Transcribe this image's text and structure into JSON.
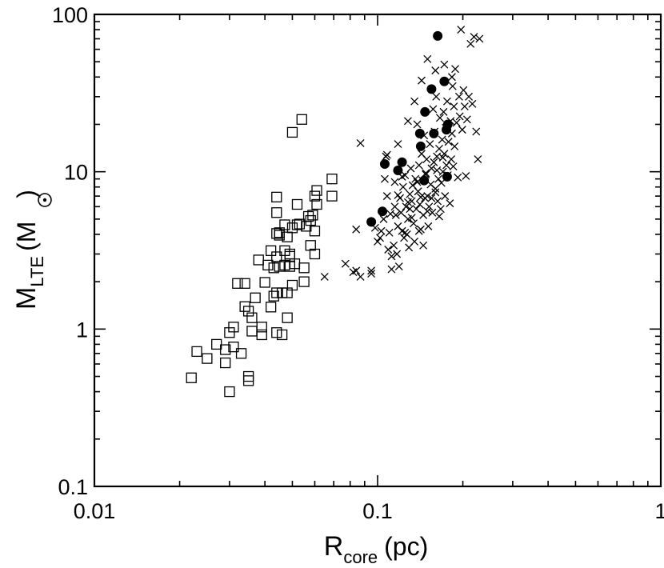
{
  "chart_data": {
    "type": "scatter",
    "xscale": "log",
    "yscale": "log",
    "xlim": [
      0.01,
      1
    ],
    "ylim": [
      0.1,
      100
    ],
    "xticks": [
      {
        "value": 0.01,
        "label": "0.01"
      },
      {
        "value": 0.1,
        "label": "0.1"
      },
      {
        "value": 1,
        "label": "1"
      }
    ],
    "yticks": [
      {
        "value": 0.1,
        "label": "0.1"
      },
      {
        "value": 1,
        "label": "1"
      },
      {
        "value": 10,
        "label": "10"
      },
      {
        "value": 100,
        "label": "100"
      }
    ],
    "xlabel": {
      "main": "R",
      "sub": "core",
      "unit": "(pc)"
    },
    "ylabel": {
      "main": "M",
      "sub": "LTE",
      "unit_open": "(M",
      "unit_close": ")"
    },
    "grid": false,
    "legend": "none",
    "series": [
      {
        "marker": "open-square",
        "points": [
          [
            0.022,
            0.49
          ],
          [
            0.023,
            0.72
          ],
          [
            0.025,
            0.65
          ],
          [
            0.027,
            0.8
          ],
          [
            0.029,
            0.61
          ],
          [
            0.029,
            0.74
          ],
          [
            0.03,
            0.4
          ],
          [
            0.03,
            0.95
          ],
          [
            0.031,
            0.77
          ],
          [
            0.031,
            1.03
          ],
          [
            0.032,
            1.95
          ],
          [
            0.033,
            0.7
          ],
          [
            0.034,
            1.39
          ],
          [
            0.034,
            1.95
          ],
          [
            0.035,
            1.3
          ],
          [
            0.035,
            0.47
          ],
          [
            0.035,
            0.5
          ],
          [
            0.036,
            0.97
          ],
          [
            0.036,
            1.18
          ],
          [
            0.037,
            1.58
          ],
          [
            0.038,
            2.75
          ],
          [
            0.039,
            0.92
          ],
          [
            0.039,
            1.03
          ],
          [
            0.04,
            1.98
          ],
          [
            0.041,
            2.55
          ],
          [
            0.042,
            1.38
          ],
          [
            0.042,
            3.15
          ],
          [
            0.043,
            1.62
          ],
          [
            0.043,
            2.45
          ],
          [
            0.044,
            0.95
          ],
          [
            0.044,
            1.7
          ],
          [
            0.044,
            2.88
          ],
          [
            0.044,
            4.05
          ],
          [
            0.044,
            5.5
          ],
          [
            0.044,
            6.9
          ],
          [
            0.045,
            3.95
          ],
          [
            0.045,
            4.1
          ],
          [
            0.045,
            2.5
          ],
          [
            0.046,
            1.7
          ],
          [
            0.046,
            0.92
          ],
          [
            0.047,
            4.6
          ],
          [
            0.047,
            3.15
          ],
          [
            0.047,
            2.55
          ],
          [
            0.048,
            1.7
          ],
          [
            0.048,
            3.85
          ],
          [
            0.048,
            1.18
          ],
          [
            0.049,
            2.5
          ],
          [
            0.049,
            3.0
          ],
          [
            0.049,
            2.9
          ],
          [
            0.05,
            1.9
          ],
          [
            0.05,
            4.4
          ],
          [
            0.05,
            17.8
          ],
          [
            0.051,
            2.6
          ],
          [
            0.052,
            4.6
          ],
          [
            0.052,
            6.2
          ],
          [
            0.053,
            4.65
          ],
          [
            0.054,
            21.5
          ],
          [
            0.055,
            2.45
          ],
          [
            0.055,
            2.0
          ],
          [
            0.056,
            4.5
          ],
          [
            0.057,
            5.2
          ],
          [
            0.058,
            3.4
          ],
          [
            0.058,
            4.9
          ],
          [
            0.059,
            5.3
          ],
          [
            0.06,
            7.0
          ],
          [
            0.06,
            3.0
          ],
          [
            0.06,
            4.2
          ],
          [
            0.061,
            6.2
          ],
          [
            0.061,
            7.6
          ],
          [
            0.069,
            7.0
          ],
          [
            0.069,
            9.0
          ]
        ]
      },
      {
        "marker": "x",
        "points": [
          [
            0.065,
            2.15
          ],
          [
            0.077,
            2.6
          ],
          [
            0.082,
            2.3
          ],
          [
            0.084,
            2.35
          ],
          [
            0.087,
            2.15
          ],
          [
            0.084,
            4.3
          ],
          [
            0.095,
            2.35
          ],
          [
            0.095,
            2.25
          ],
          [
            0.098,
            4.4
          ],
          [
            0.1,
            3.6
          ],
          [
            0.102,
            3.8
          ],
          [
            0.103,
            4.2
          ],
          [
            0.105,
            5.0
          ],
          [
            0.106,
            9.0
          ],
          [
            0.107,
            12.5
          ],
          [
            0.108,
            7.0
          ],
          [
            0.109,
            3.2
          ],
          [
            0.11,
            4.1
          ],
          [
            0.111,
            5.4
          ],
          [
            0.112,
            2.9
          ],
          [
            0.112,
            2.4
          ],
          [
            0.114,
            3.4
          ],
          [
            0.115,
            6.0
          ],
          [
            0.115,
            8.6
          ],
          [
            0.116,
            5.3
          ],
          [
            0.117,
            3.0
          ],
          [
            0.118,
            4.5
          ],
          [
            0.119,
            2.5
          ],
          [
            0.12,
            6.8
          ],
          [
            0.121,
            5.5
          ],
          [
            0.122,
            4.2
          ],
          [
            0.123,
            8.0
          ],
          [
            0.124,
            3.8
          ],
          [
            0.125,
            9.5
          ],
          [
            0.126,
            6.0
          ],
          [
            0.127,
            4.0
          ],
          [
            0.128,
            5.0
          ],
          [
            0.129,
            3.3
          ],
          [
            0.13,
            7.2
          ],
          [
            0.131,
            10.5
          ],
          [
            0.132,
            6.5
          ],
          [
            0.133,
            8.2
          ],
          [
            0.134,
            4.7
          ],
          [
            0.135,
            3.6
          ],
          [
            0.136,
            9.0
          ],
          [
            0.137,
            5.8
          ],
          [
            0.138,
            20.0
          ],
          [
            0.139,
            7.5
          ],
          [
            0.14,
            11.0
          ],
          [
            0.141,
            6.2
          ],
          [
            0.142,
            4.3
          ],
          [
            0.143,
            13.0
          ],
          [
            0.144,
            8.8
          ],
          [
            0.145,
            5.3
          ],
          [
            0.146,
            17.0
          ],
          [
            0.147,
            6.8
          ],
          [
            0.148,
            9.8
          ],
          [
            0.149,
            12.0
          ],
          [
            0.15,
            7.0
          ],
          [
            0.151,
            4.5
          ],
          [
            0.152,
            6.0
          ],
          [
            0.153,
            15.0
          ],
          [
            0.154,
            8.3
          ],
          [
            0.155,
            10.5
          ],
          [
            0.156,
            5.5
          ],
          [
            0.157,
            25.0
          ],
          [
            0.158,
            11.5
          ],
          [
            0.159,
            18.0
          ],
          [
            0.16,
            7.8
          ],
          [
            0.161,
            30.0
          ],
          [
            0.162,
            12.5
          ],
          [
            0.163,
            6.5
          ],
          [
            0.164,
            9.0
          ],
          [
            0.165,
            14.0
          ],
          [
            0.166,
            22.0
          ],
          [
            0.167,
            5.8
          ],
          [
            0.168,
            8.5
          ],
          [
            0.169,
            16.0
          ],
          [
            0.17,
            10.0
          ],
          [
            0.171,
            24.0
          ],
          [
            0.172,
            13.0
          ],
          [
            0.173,
            7.0
          ],
          [
            0.174,
            19.0
          ],
          [
            0.175,
            11.0
          ],
          [
            0.176,
            28.0
          ],
          [
            0.177,
            9.5
          ],
          [
            0.178,
            15.5
          ],
          [
            0.18,
            6.3
          ],
          [
            0.181,
            21.0
          ],
          [
            0.182,
            12.0
          ],
          [
            0.183,
            17.5
          ],
          [
            0.184,
            35.0
          ],
          [
            0.185,
            10.8
          ],
          [
            0.186,
            26.0
          ],
          [
            0.187,
            14.5
          ],
          [
            0.188,
            45.0
          ],
          [
            0.19,
            20.5
          ],
          [
            0.192,
            9.2
          ],
          [
            0.194,
            30.0
          ],
          [
            0.195,
            22.5
          ],
          [
            0.197,
            80.0
          ],
          [
            0.199,
            18.5
          ],
          [
            0.201,
            33.0
          ],
          [
            0.203,
            26.0
          ],
          [
            0.205,
            9.4
          ],
          [
            0.207,
            21.5
          ],
          [
            0.21,
            30.0
          ],
          [
            0.213,
            65.0
          ],
          [
            0.216,
            27.0
          ],
          [
            0.219,
            72.0
          ],
          [
            0.223,
            18.0
          ],
          [
            0.226,
            12.0
          ],
          [
            0.229,
            70.0
          ],
          [
            0.15,
            52.0
          ],
          [
            0.16,
            44.0
          ],
          [
            0.172,
            48.0
          ],
          [
            0.183,
            40.0
          ],
          [
            0.143,
            38.0
          ],
          [
            0.135,
            28.0
          ],
          [
            0.128,
            21.0
          ],
          [
            0.118,
            15.0
          ],
          [
            0.108,
            12.8
          ],
          [
            0.087,
            15.2
          ],
          [
            0.125,
            4.1
          ],
          [
            0.13,
            5.8
          ],
          [
            0.14,
            4.2
          ],
          [
            0.145,
            3.4
          ],
          [
            0.15,
            5.6
          ],
          [
            0.155,
            6.8
          ],
          [
            0.16,
            7.4
          ],
          [
            0.165,
            5.2
          ],
          [
            0.128,
            6.4
          ],
          [
            0.118,
            7.1
          ],
          [
            0.122,
            9.3
          ],
          [
            0.138,
            8.6
          ],
          [
            0.148,
            9.6
          ],
          [
            0.162,
            10.2
          ],
          [
            0.17,
            12.3
          ],
          [
            0.132,
            5.1
          ],
          [
            0.142,
            6.9
          ]
        ]
      },
      {
        "marker": "filled-circle",
        "points": [
          [
            0.095,
            4.8
          ],
          [
            0.104,
            5.6
          ],
          [
            0.106,
            11.2
          ],
          [
            0.118,
            10.2
          ],
          [
            0.122,
            11.5
          ],
          [
            0.141,
            17.5
          ],
          [
            0.142,
            14.5
          ],
          [
            0.146,
            8.8
          ],
          [
            0.147,
            24.0
          ],
          [
            0.155,
            33.5
          ],
          [
            0.158,
            17.5
          ],
          [
            0.163,
            73.0
          ],
          [
            0.172,
            37.5
          ],
          [
            0.175,
            18.5
          ],
          [
            0.177,
            20.0
          ],
          [
            0.176,
            9.3
          ]
        ]
      }
    ]
  }
}
